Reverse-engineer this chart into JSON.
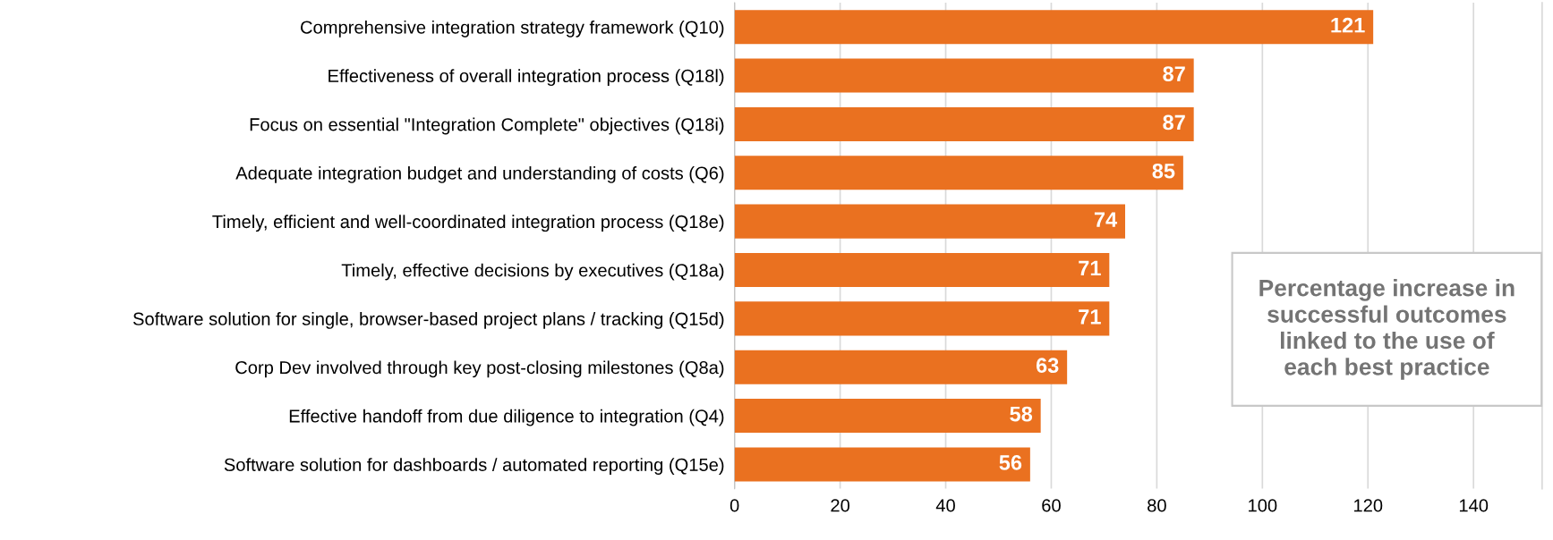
{
  "chart_data": {
    "type": "bar",
    "orientation": "horizontal",
    "categories": [
      "Comprehensive integration strategy framework (Q10)",
      "Effectiveness of overall integration process (Q18l)",
      "Focus on essential \"Integration Complete\" objectives (Q18i)",
      "Adequate integration budget and understanding of costs (Q6)",
      "Timely, efficient and well-coordinated integration process (Q18e)",
      "Timely, effective decisions by executives (Q18a)",
      "Software solution for single, browser-based project plans / tracking (Q15d)",
      "Corp Dev involved through key post-closing milestones (Q8a)",
      "Effective handoff from due diligence to integration (Q4)",
      "Software solution for dashboards / automated reporting (Q15e)"
    ],
    "values": [
      121,
      87,
      87,
      85,
      74,
      71,
      71,
      63,
      58,
      56
    ],
    "color": "#ea7120",
    "data_labels": true,
    "xlim": [
      0,
      153
    ],
    "xticks": [
      0,
      20,
      40,
      60,
      80,
      100,
      120,
      140
    ],
    "grid": "x",
    "annotations": [
      "Percentage increase in\nsuccessful outcomes\nlinked to the use of\neach best practice"
    ]
  }
}
